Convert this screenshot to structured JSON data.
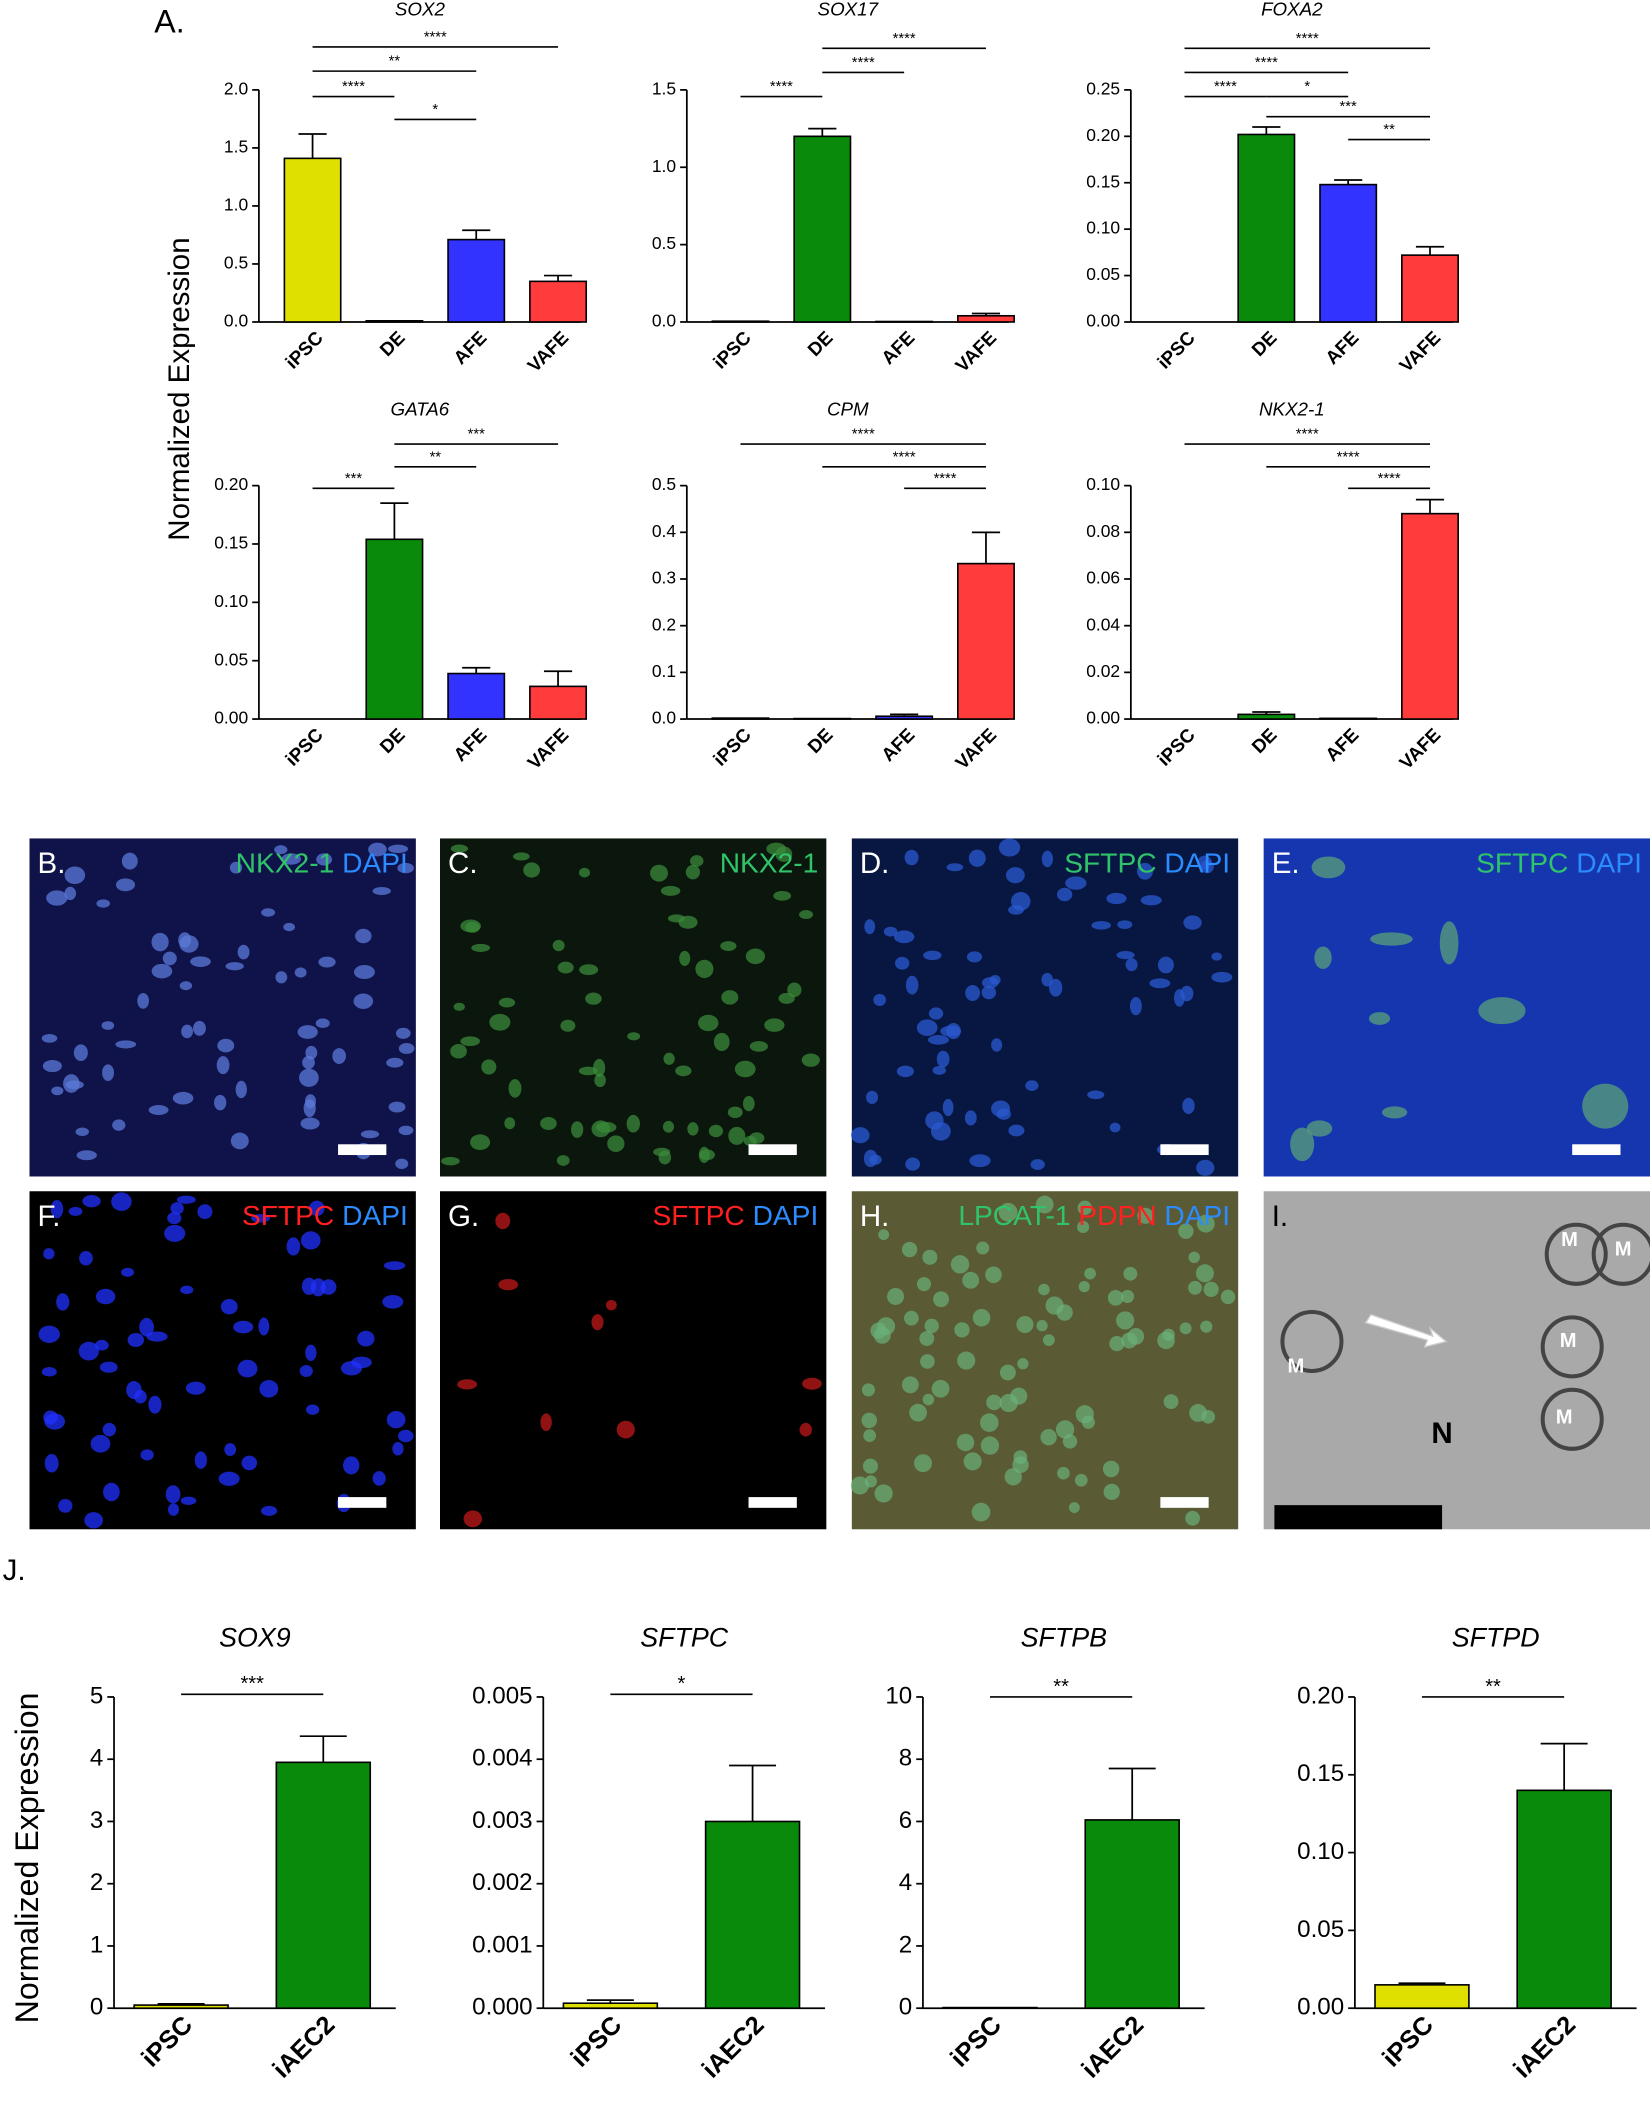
{
  "chart_data": [
    {
      "type": "bar",
      "title": "SOX2",
      "ylabel": "Normalized Expression",
      "categories": [
        "iPSC",
        "DE",
        "AFE",
        "VAFE"
      ],
      "values": [
        1.41,
        0.01,
        0.71,
        0.35
      ],
      "errors": [
        0.21,
        null,
        0.08,
        0.05
      ],
      "colors": [
        "#e0e000",
        "#0a8a0a",
        "#3333ff",
        "#ff3b3b"
      ],
      "ylim": [
        0,
        2.0
      ],
      "yticks": [
        {
          "value": 0,
          "label": "0.0"
        },
        0.5,
        {
          "value": 1,
          "label": "1.0"
        },
        1.5,
        {
          "value": 2,
          "label": "2.0"
        }
      ],
      "annotations": [
        {
          "text": "****",
          "between": [
            "iPSC",
            "VAFE"
          ]
        },
        {
          "text": "**",
          "between": [
            "iPSC",
            "AFE"
          ]
        },
        {
          "text": "****",
          "between": [
            "iPSC",
            "DE"
          ]
        },
        {
          "text": "*",
          "between": [
            "DE",
            "AFE"
          ]
        }
      ]
    },
    {
      "type": "bar",
      "title": "SOX17",
      "categories": [
        "iPSC",
        "DE",
        "AFE",
        "VAFE"
      ],
      "values": [
        0.005,
        1.2,
        0.003,
        0.04
      ],
      "errors": [
        null,
        0.05,
        null,
        0.015
      ],
      "colors": [
        "#e0e000",
        "#0a8a0a",
        "#3333ff",
        "#ff3b3b"
      ],
      "ylim": [
        0,
        1.5
      ],
      "yticks": [
        {
          "value": 0,
          "label": "0.0"
        },
        0.5,
        {
          "value": 1,
          "label": "1.0"
        },
        1.5
      ],
      "annotations": [
        {
          "text": "****",
          "between": [
            "DE",
            "VAFE"
          ]
        },
        {
          "text": "****",
          "between": [
            "DE",
            "AFE"
          ]
        },
        {
          "text": "****",
          "between": [
            "iPSC",
            "DE"
          ]
        }
      ]
    },
    {
      "type": "bar",
      "title": "FOXA2",
      "categories": [
        "iPSC",
        "DE",
        "AFE",
        "VAFE"
      ],
      "values": [
        0,
        0.202,
        0.148,
        0.072
      ],
      "errors": [
        null,
        0.008,
        0.005,
        0.009
      ],
      "colors": [
        "#e0e000",
        "#0a8a0a",
        "#3333ff",
        "#ff3b3b"
      ],
      "ylim": [
        0,
        0.25
      ],
      "yticks": [
        {
          "value": 0,
          "label": "0.00"
        },
        0.05,
        {
          "value": 0.1,
          "label": "0.10"
        },
        0.15,
        {
          "value": 0.2,
          "label": "0.20"
        },
        0.25
      ],
      "annotations": [
        {
          "text": "****",
          "between": [
            "iPSC",
            "VAFE"
          ]
        },
        {
          "text": "****",
          "between": [
            "iPSC",
            "AFE"
          ]
        },
        {
          "text": "****",
          "between": [
            "iPSC",
            "DE"
          ]
        },
        {
          "text": "*",
          "between": [
            "DE",
            "AFE"
          ]
        },
        {
          "text": "***",
          "between": [
            "DE",
            "VAFE"
          ]
        },
        {
          "text": "**",
          "between": [
            "AFE",
            "VAFE"
          ]
        }
      ]
    },
    {
      "type": "bar",
      "title": "GATA6",
      "categories": [
        "iPSC",
        "DE",
        "AFE",
        "VAFE"
      ],
      "values": [
        0,
        0.154,
        0.039,
        0.028
      ],
      "errors": [
        null,
        0.031,
        0.005,
        0.013
      ],
      "colors": [
        "#e0e000",
        "#0a8a0a",
        "#3333ff",
        "#ff3b3b"
      ],
      "ylim": [
        0,
        0.2
      ],
      "yticks": [
        {
          "value": 0,
          "label": "0.00"
        },
        0.05,
        {
          "value": 0.1,
          "label": "0.10"
        },
        0.15,
        {
          "value": 0.2,
          "label": "0.20"
        }
      ],
      "annotations": [
        {
          "text": "***",
          "between": [
            "DE",
            "VAFE"
          ]
        },
        {
          "text": "**",
          "between": [
            "DE",
            "AFE"
          ]
        },
        {
          "text": "***",
          "between": [
            "iPSC",
            "DE"
          ]
        }
      ]
    },
    {
      "type": "bar",
      "title": "CPM",
      "categories": [
        "iPSC",
        "DE",
        "AFE",
        "VAFE"
      ],
      "values": [
        0.002,
        0.001,
        0.006,
        0.333
      ],
      "errors": [
        null,
        null,
        0.004,
        0.067
      ],
      "colors": [
        "#e0e000",
        "#0a8a0a",
        "#3333ff",
        "#ff3b3b"
      ],
      "ylim": [
        0,
        0.5
      ],
      "yticks": [
        {
          "value": 0,
          "label": "0.0"
        },
        0.1,
        0.2,
        0.3,
        0.4,
        0.5
      ],
      "annotations": [
        {
          "text": "****",
          "between": [
            "iPSC",
            "VAFE"
          ]
        },
        {
          "text": "****",
          "between": [
            "DE",
            "VAFE"
          ]
        },
        {
          "text": "****",
          "between": [
            "AFE",
            "VAFE"
          ]
        }
      ]
    },
    {
      "type": "bar",
      "title": "NKX2-1",
      "categories": [
        "iPSC",
        "DE",
        "AFE",
        "VAFE"
      ],
      "values": [
        0,
        0.002,
        0.0003,
        0.088
      ],
      "errors": [
        null,
        0.001,
        null,
        0.006
      ],
      "colors": [
        "#e0e000",
        "#0a8a0a",
        "#3333ff",
        "#ff3b3b"
      ],
      "ylim": [
        0,
        0.1
      ],
      "yticks": [
        {
          "value": 0,
          "label": "0.00"
        },
        0.02,
        0.04,
        0.06,
        0.08,
        {
          "value": 0.1,
          "label": "0.10"
        }
      ],
      "annotations": [
        {
          "text": "****",
          "between": [
            "iPSC",
            "VAFE"
          ]
        },
        {
          "text": "****",
          "between": [
            "DE",
            "VAFE"
          ]
        },
        {
          "text": "****",
          "between": [
            "AFE",
            "VAFE"
          ]
        }
      ]
    },
    {
      "type": "bar",
      "title": "SOX9",
      "ylabel": "Normalized Expression",
      "categories": [
        "iPSC",
        "iAEC2"
      ],
      "values": [
        0.05,
        3.95
      ],
      "errors": [
        0.02,
        0.42
      ],
      "colors": [
        "#e0e000",
        "#0a8a0a"
      ],
      "ylim": [
        0,
        5
      ],
      "yticks": [
        0,
        1,
        2,
        3,
        4,
        5
      ],
      "annotations": [
        {
          "text": "***",
          "between": [
            "iPSC",
            "iAEC2"
          ]
        }
      ]
    },
    {
      "type": "bar",
      "title": "SFTPC",
      "categories": [
        "iPSC",
        "iAEC2"
      ],
      "values": [
        8e-05,
        0.003
      ],
      "errors": [
        5e-05,
        0.0009
      ],
      "colors": [
        "#e0e000",
        "#0a8a0a"
      ],
      "ylim": [
        0,
        0.005
      ],
      "yticks": [
        {
          "value": 0,
          "label": "0.000"
        },
        0.001,
        0.002,
        0.003,
        0.004,
        0.005
      ],
      "annotations": [
        {
          "text": "*",
          "between": [
            "iPSC",
            "iAEC2"
          ]
        }
      ]
    },
    {
      "type": "bar",
      "title": "SFTPB",
      "categories": [
        "iPSC",
        "iAEC2"
      ],
      "values": [
        0.02,
        6.05
      ],
      "errors": [
        null,
        1.65
      ],
      "colors": [
        "#e0e000",
        "#0a8a0a"
      ],
      "ylim": [
        0,
        10
      ],
      "yticks": [
        0,
        2,
        4,
        6,
        8,
        10
      ],
      "annotations": [
        {
          "text": "**",
          "between": [
            "iPSC",
            "iAEC2"
          ]
        }
      ]
    },
    {
      "type": "bar",
      "title": "SFTPD",
      "categories": [
        "iPSC",
        "iAEC2"
      ],
      "values": [
        0.015,
        0.14
      ],
      "errors": [
        0.001,
        0.03
      ],
      "colors": [
        "#e0e000",
        "#0a8a0a"
      ],
      "ylim": [
        0,
        0.2
      ],
      "yticks": [
        {
          "value": 0,
          "label": "0.00"
        },
        0.05,
        {
          "value": 0.1,
          "label": "0.10"
        },
        0.15,
        {
          "value": 0.2,
          "label": "0.20"
        }
      ],
      "annotations": [
        {
          "text": "**",
          "between": [
            "iPSC",
            "iAEC2"
          ]
        }
      ]
    }
  ],
  "panel_labels": [
    "A.",
    "J."
  ],
  "image_panels": [
    {
      "label": "B.",
      "stain": [
        {
          "text": "NKX2-1",
          "color": "#2fc46a"
        },
        {
          "text": "DAPI",
          "color": "#2a8cff"
        }
      ]
    },
    {
      "label": "C.",
      "stain": [
        {
          "text": "NKX2-1",
          "color": "#2fc46a"
        }
      ]
    },
    {
      "label": "D.",
      "stain": [
        {
          "text": "SFTPC",
          "color": "#2fc46a"
        },
        {
          "text": "DAPI",
          "color": "#2a8cff"
        }
      ]
    },
    {
      "label": "E.",
      "stain": [
        {
          "text": "SFTPC",
          "color": "#2fc46a"
        },
        {
          "text": "DAPI",
          "color": "#2a8cff"
        }
      ]
    },
    {
      "label": "F.",
      "stain": [
        {
          "text": "SFTPC",
          "color": "#ff2020"
        },
        {
          "text": "DAPI",
          "color": "#2a8cff"
        }
      ]
    },
    {
      "label": "G.",
      "stain": [
        {
          "text": "SFTPC",
          "color": "#ff2020"
        },
        {
          "text": "DAPI",
          "color": "#2a8cff"
        }
      ]
    },
    {
      "label": "H.",
      "stain": [
        {
          "text": "LPCAT-1",
          "color": "#2fc46a"
        },
        {
          "text": "PDPN",
          "color": "#ff2020"
        },
        {
          "text": "DAPI",
          "color": "#2a8cff"
        }
      ]
    },
    {
      "label": "I.",
      "stain": [],
      "marks": [
        "M",
        "M",
        "M",
        "M",
        "M",
        "N"
      ]
    }
  ]
}
